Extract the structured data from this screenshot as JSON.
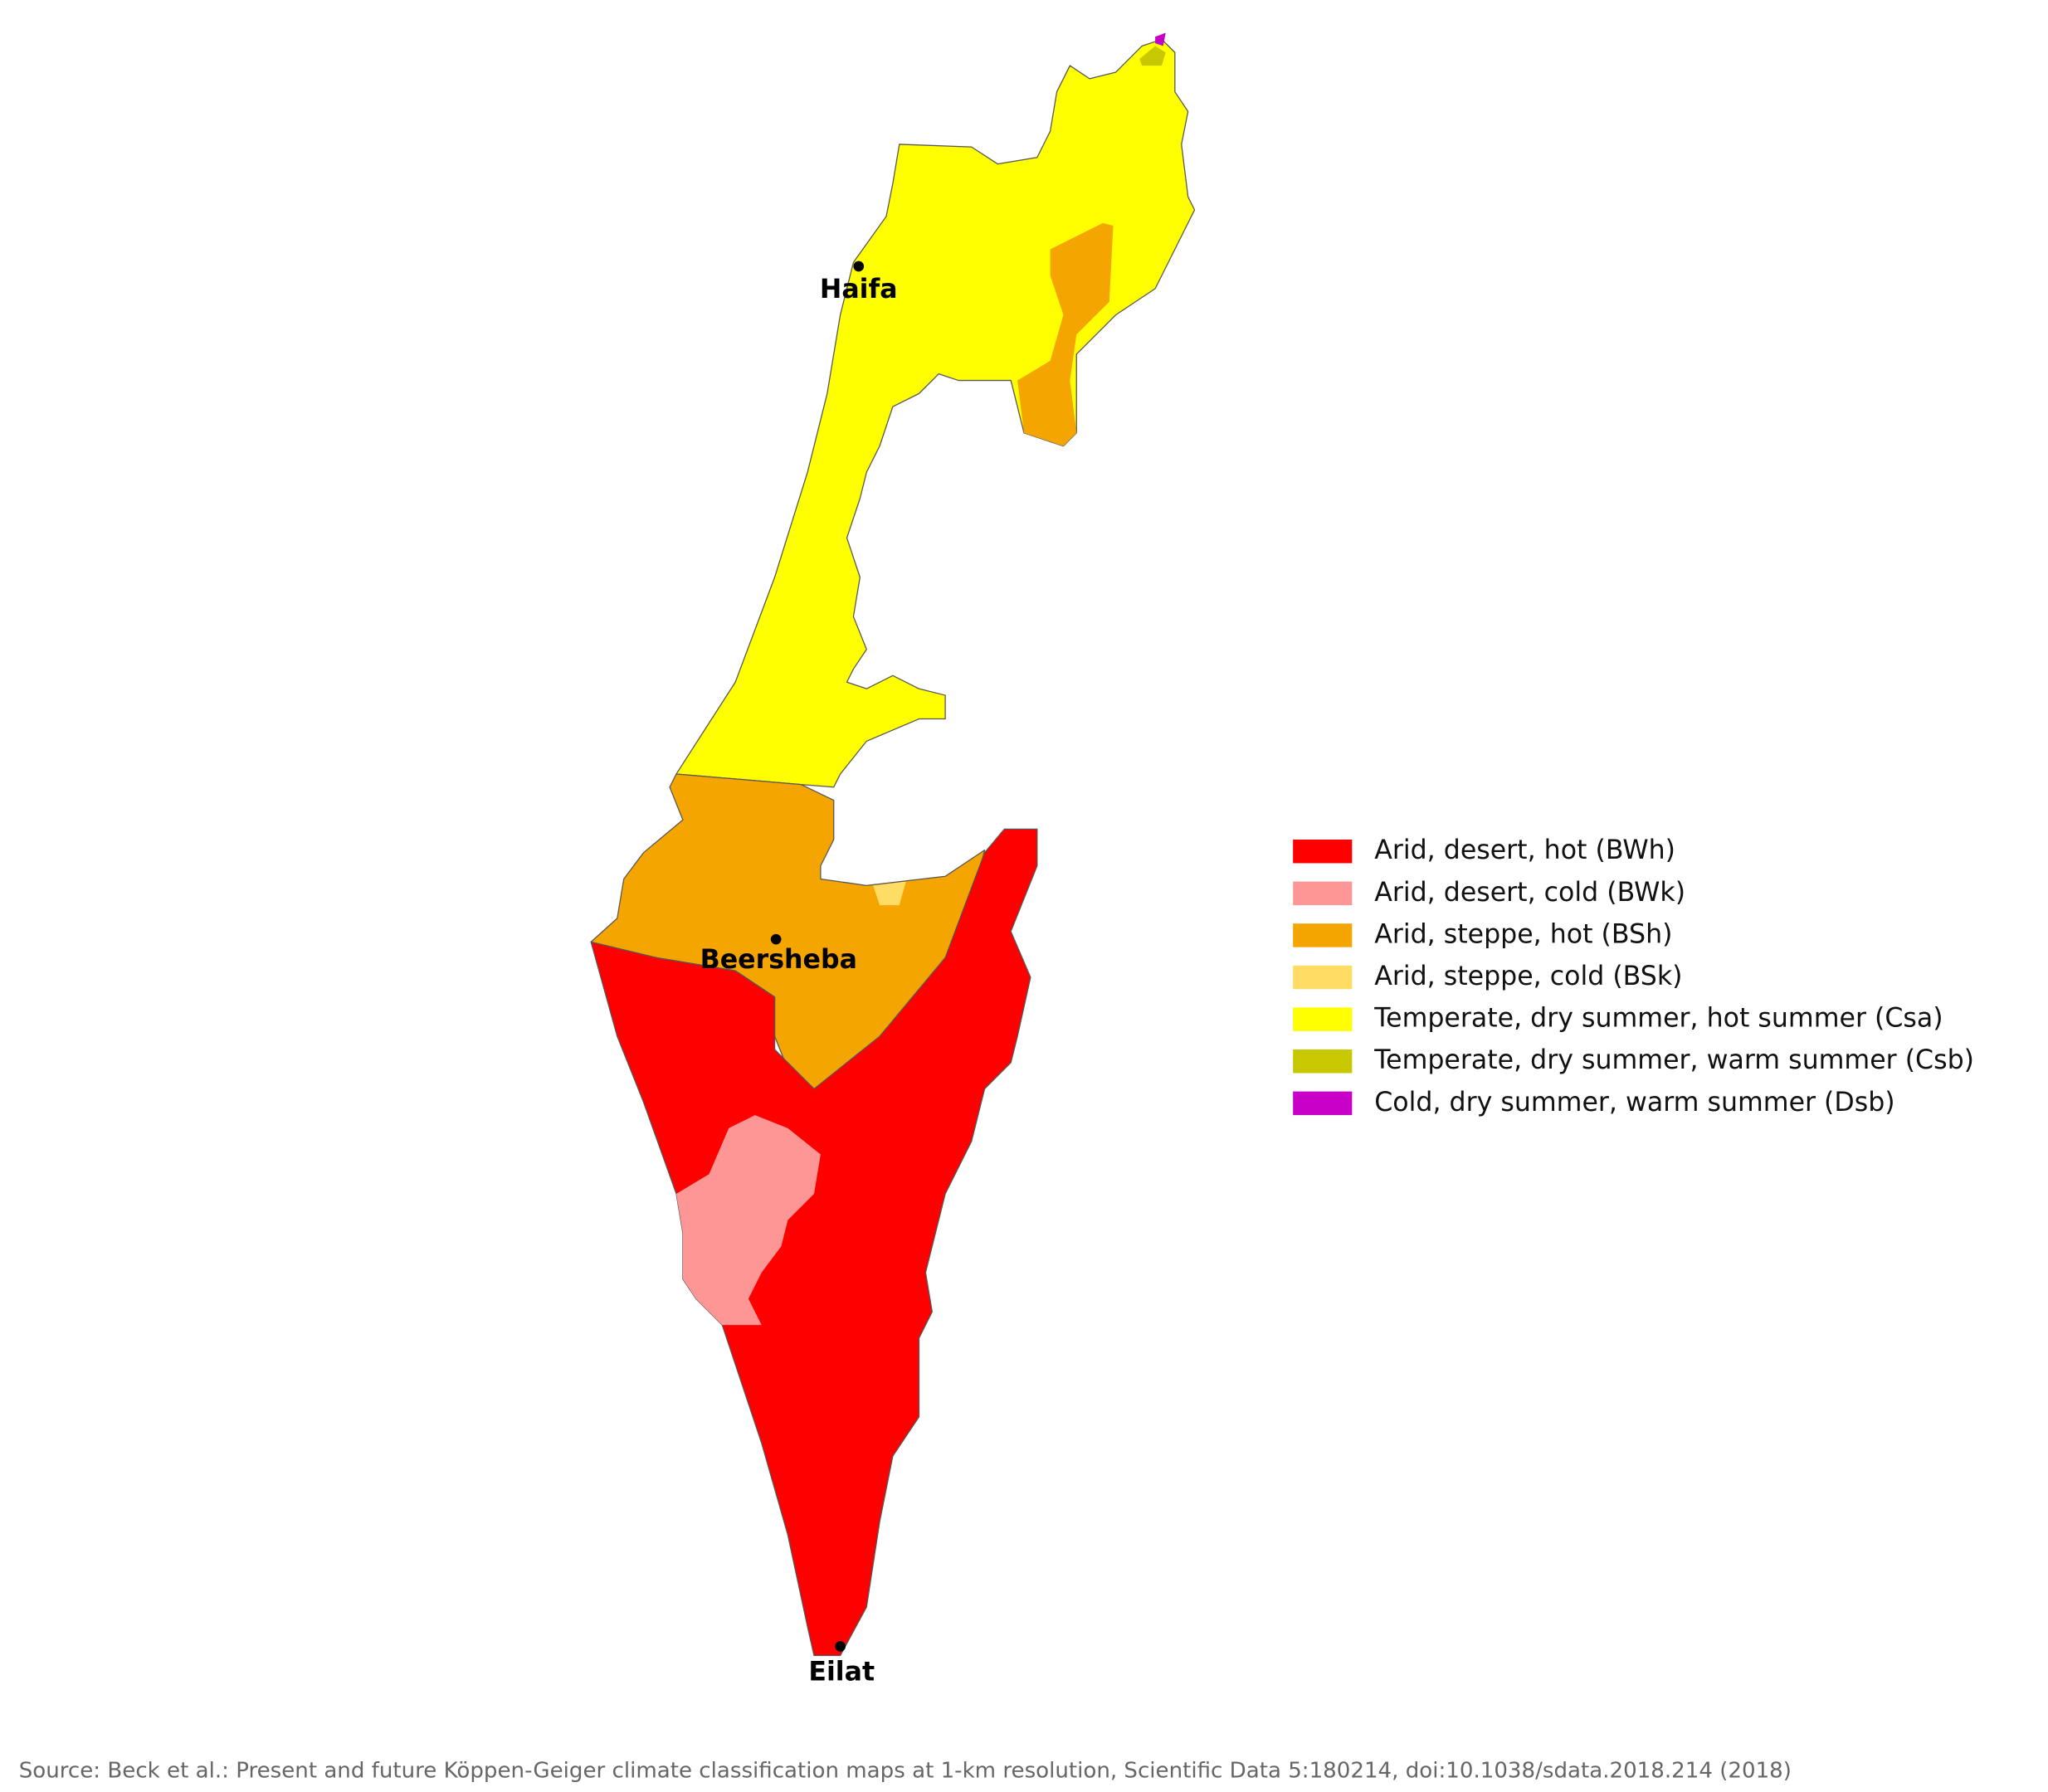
{
  "legend": {
    "items": [
      {
        "label": "Arid, desert, hot (BWh)",
        "color": "#ff0000"
      },
      {
        "label": "Arid, desert, cold (BWk)",
        "color": "#ff9696"
      },
      {
        "label": "Arid, steppe, hot (BSh)",
        "color": "#f5a500"
      },
      {
        "label": "Arid, steppe, cold (BSk)",
        "color": "#ffdc64"
      },
      {
        "label": "Temperate, dry summer, hot summer (Csa)",
        "color": "#ffff00"
      },
      {
        "label": "Temperate, dry summer, warm summer (Csb)",
        "color": "#c8c800"
      },
      {
        "label": "Cold, dry summer, warm summer (Dsb)",
        "color": "#c800c8"
      }
    ]
  },
  "cities": [
    {
      "name": "Haifa"
    },
    {
      "name": "Beersheba"
    },
    {
      "name": "Eilat"
    }
  ],
  "source": "Source: Beck et al.: Present and future Köppen-Geiger climate classification maps at 1-km resolution, Scientific Data 5:180214, doi:10.1038/sdata.2018.214 (2018)"
}
